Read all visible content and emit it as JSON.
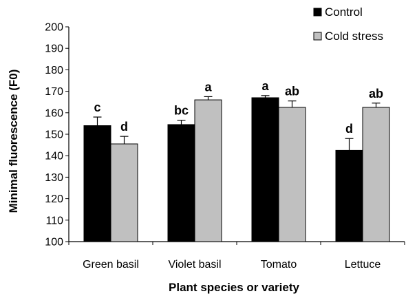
{
  "chart_data": {
    "type": "bar",
    "categories": [
      "Green basil",
      "Violet basil",
      "Tomato",
      "Lettuce"
    ],
    "series": [
      {
        "name": "Control",
        "color": "#000000",
        "values": [
          154,
          154.5,
          167,
          142.5
        ],
        "errors": [
          4,
          2,
          1,
          5.5
        ],
        "labels": [
          "c",
          "bc",
          "a",
          "d"
        ]
      },
      {
        "name": "Cold stress",
        "color": "#c0c0c0",
        "values": [
          145.5,
          166,
          162.5,
          162.5
        ],
        "errors": [
          3.5,
          1.5,
          3,
          2
        ],
        "labels": [
          "d",
          "a",
          "ab",
          "ab"
        ]
      }
    ],
    "xlabel": "Plant species or variety",
    "ylabel": "Minimal fluorescence (F0)",
    "ylim": [
      100,
      200
    ],
    "yticks": [
      100,
      110,
      120,
      130,
      140,
      150,
      160,
      170,
      180,
      190,
      200
    ],
    "grid": false,
    "legend_position": "top-right"
  }
}
